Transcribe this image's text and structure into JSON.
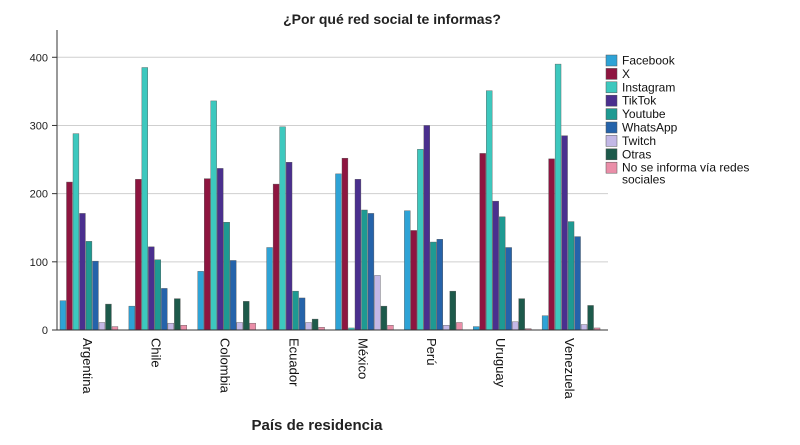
{
  "chart_data": {
    "type": "bar",
    "title": "¿Por qué red social te informas?",
    "xlabel": "País de residencia",
    "ylabel": "",
    "ylim": [
      0,
      440
    ],
    "yticks": [
      0,
      100,
      200,
      300,
      400
    ],
    "grid": true,
    "legend_position": "right",
    "categories": [
      "Argentina",
      "Chile",
      "Colombia",
      "Ecuador",
      "México",
      "Perú",
      "Uruguay",
      "Venezuela"
    ],
    "series": [
      {
        "name": "Facebook",
        "color": "#2EA3D6",
        "values": [
          43,
          35,
          86,
          121,
          229,
          175,
          5,
          21
        ]
      },
      {
        "name": "X",
        "color": "#8E1540",
        "values": [
          217,
          221,
          222,
          214,
          252,
          146,
          259,
          251
        ]
      },
      {
        "name": "Instagram",
        "color": "#3DC8BE",
        "values": [
          288,
          385,
          336,
          298,
          3,
          265,
          351,
          390
        ]
      },
      {
        "name": "TikTok",
        "color": "#4A2F8E",
        "values": [
          171,
          122,
          237,
          246,
          221,
          300,
          189,
          285
        ]
      },
      {
        "name": "Youtube",
        "color": "#1E9A92",
        "values": [
          130,
          103,
          158,
          57,
          176,
          129,
          166,
          159
        ]
      },
      {
        "name": "WhatsApp",
        "color": "#2563AA",
        "values": [
          101,
          61,
          102,
          47,
          171,
          133,
          121,
          137
        ]
      },
      {
        "name": "Twitch",
        "color": "#C3B8E6",
        "values": [
          11,
          10,
          11,
          11,
          80,
          7,
          12,
          8
        ]
      },
      {
        "name": "Otras",
        "color": "#1D5A4B",
        "values": [
          38,
          46,
          42,
          16,
          35,
          57,
          46,
          36
        ]
      },
      {
        "name": "No se informa vía redes sociales",
        "color": "#EA8EA8",
        "values": [
          5,
          7,
          10,
          4,
          7,
          11,
          2,
          3
        ]
      }
    ]
  }
}
